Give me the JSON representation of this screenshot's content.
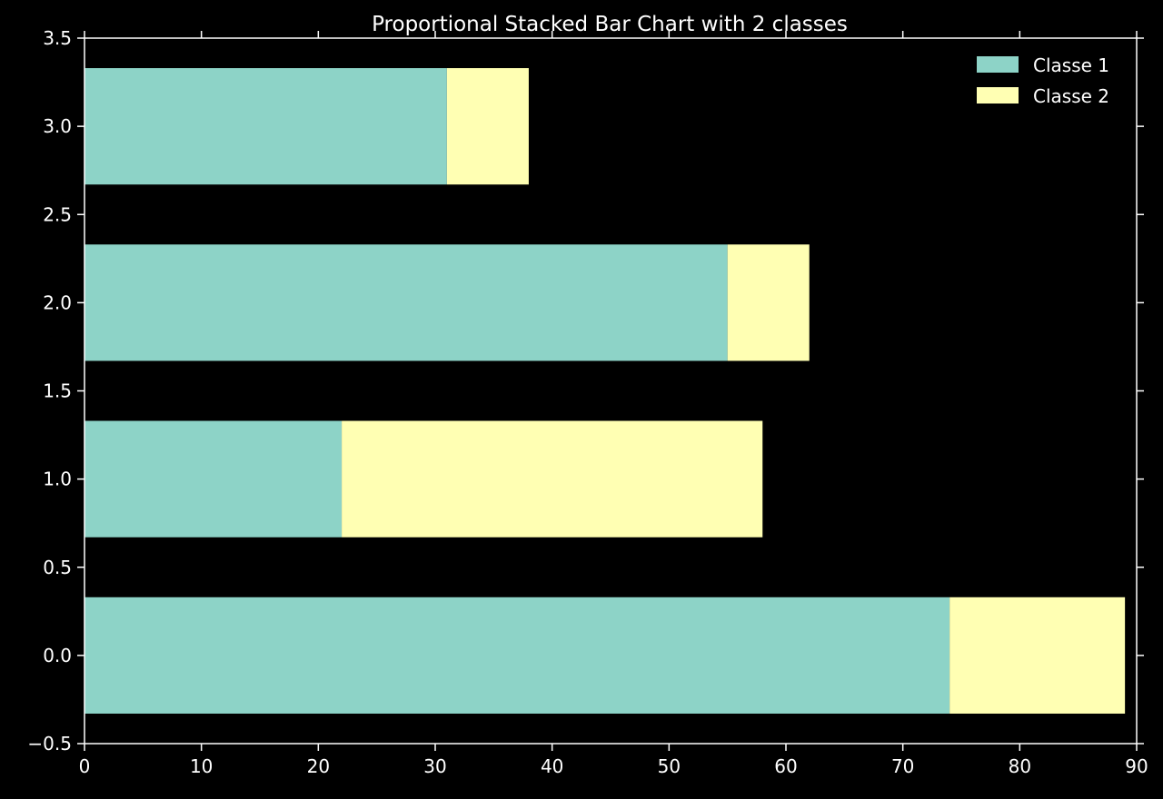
{
  "chart_data": {
    "type": "bar",
    "orientation": "horizontal",
    "stacked": true,
    "title": "Proportional Stacked Bar Chart with 2 classes",
    "xlabel": "",
    "ylabel": "",
    "y": [
      0,
      1,
      2,
      3
    ],
    "series": [
      {
        "name": "Classe 1",
        "color": "#8dd3c7",
        "values": [
          74,
          22,
          55,
          31
        ]
      },
      {
        "name": "Classe 2",
        "color": "#ffffb3",
        "values": [
          15,
          36,
          7,
          7
        ]
      }
    ],
    "bar_height": 0.66,
    "xlim": [
      0,
      90
    ],
    "ylim": [
      -0.5,
      3.5
    ],
    "xticks": [
      "0",
      "10",
      "20",
      "30",
      "40",
      "50",
      "60",
      "70",
      "80",
      "90"
    ],
    "yticks": [
      "−0.5",
      "0.0",
      "0.5",
      "1.0",
      "1.5",
      "2.0",
      "2.5",
      "3.0",
      "3.5"
    ],
    "grid": false,
    "legend_position": "top-right"
  },
  "colors": {
    "background": "#000000",
    "axes": "#ffffff"
  }
}
